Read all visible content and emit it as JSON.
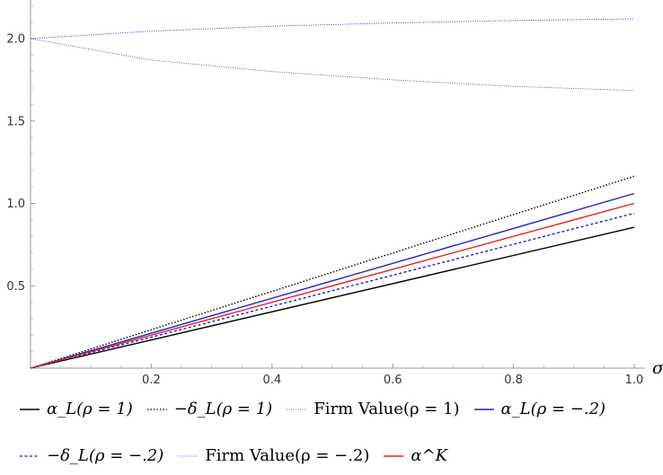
{
  "chart_data": {
    "type": "line",
    "xlabel": "σ",
    "ylabel": "",
    "xlim": [
      0,
      1.0
    ],
    "ylim": [
      0,
      2.2
    ],
    "xticks": [
      "0.2",
      "0.4",
      "0.6",
      "0.8",
      "1.0"
    ],
    "yticks": [
      "0.5",
      "1.0",
      "1.5",
      "2.0"
    ],
    "legend_position": "bottom",
    "series": [
      {
        "name": "α_L(ρ = 1)",
        "color": "#000000",
        "dash": "solid",
        "x": [
          0,
          1.0
        ],
        "y": [
          0,
          0.855
        ]
      },
      {
        "name": "−δ_L(ρ = 1)",
        "color": "#000000",
        "dash": "dotted",
        "x": [
          0,
          1.0
        ],
        "y": [
          0,
          1.165
        ]
      },
      {
        "name": "Firm Value(ρ = 1)",
        "color": "#555555",
        "dash": "fine",
        "x": [
          0,
          0.2,
          0.4,
          0.6,
          0.8,
          1.0
        ],
        "y": [
          2.0,
          1.87,
          1.8,
          1.75,
          1.71,
          1.685
        ]
      },
      {
        "name": "α_L(ρ = −.2)",
        "color": "#1f1fcc",
        "dash": "solid",
        "x": [
          0,
          1.0
        ],
        "y": [
          0,
          1.06
        ]
      },
      {
        "name": "−δ_L(ρ = −.2)",
        "color": "#1f1fcc",
        "dash": "dashed",
        "x": [
          0,
          1.0
        ],
        "y": [
          0,
          0.94
        ]
      },
      {
        "name": "Firm Value(ρ = −.2)",
        "color": "#1f1fcc",
        "dash": "fine",
        "x": [
          0,
          0.2,
          0.4,
          0.6,
          0.8,
          1.0
        ],
        "y": [
          2.0,
          2.045,
          2.075,
          2.095,
          2.11,
          2.12
        ]
      },
      {
        "name": "α^K",
        "color": "#e8201e",
        "dash": "solid",
        "x": [
          0,
          1.0
        ],
        "y": [
          0,
          1.0
        ]
      }
    ]
  },
  "legend": {
    "row1": [
      {
        "label": "α_L(ρ = 1)",
        "color": "#000000",
        "dash": "solid"
      },
      {
        "label": "−δ_L(ρ = 1)",
        "color": "#000000",
        "dash": "dotted"
      },
      {
        "label": "Firm Value(ρ = 1)",
        "color": "#777777",
        "dash": "fine"
      },
      {
        "label": "α_L(ρ = −.2)",
        "color": "#1f1fcc",
        "dash": "solid"
      }
    ],
    "row2": [
      {
        "label": "−δ_L(ρ = −.2)",
        "color": "#1f1fcc",
        "dash": "dashed"
      },
      {
        "label": "Firm Value(ρ = −.2)",
        "color": "#6666dd",
        "dash": "fine"
      },
      {
        "label": "α^K",
        "color": "#e8201e",
        "dash": "solid"
      }
    ]
  }
}
